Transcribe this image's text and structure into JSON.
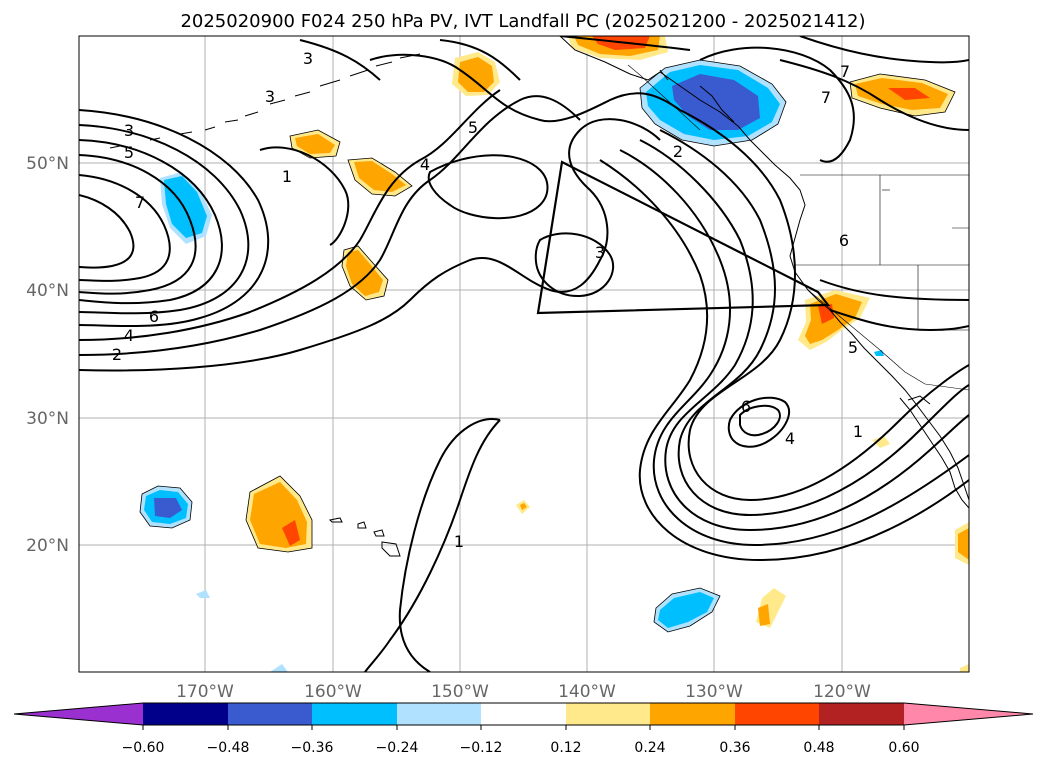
{
  "title": "2025020900 F024 250 hPa PV, IVT Landfall PC (2025021200 - 2025021412)",
  "map": {
    "lon_range": [
      -180,
      -110
    ],
    "lat_range": [
      10,
      60
    ],
    "lat_labels": [
      "20°N",
      "30°N",
      "40°N",
      "50°N"
    ],
    "lon_labels": [
      "170°W",
      "160°W",
      "150°W",
      "140°W",
      "130°W",
      "120°W"
    ],
    "contour_labels": [
      "3",
      "3",
      "5",
      "7",
      "6",
      "4",
      "2",
      "1",
      "3",
      "4",
      "5",
      "2",
      "3",
      "7",
      "7",
      "6",
      "5",
      "6",
      "4",
      "1",
      "1"
    ]
  },
  "colorbar": {
    "ticks": [
      "−0.60",
      "−0.48",
      "−0.36",
      "−0.24",
      "−0.12",
      "0.12",
      "0.24",
      "0.36",
      "0.48",
      "0.60"
    ],
    "colors": [
      "#9b30d0",
      "#00008b",
      "#3a5bd0",
      "#00bfff",
      "#b0e2ff",
      "#ffffff",
      "#ffe98a",
      "#ffa500",
      "#ff4500",
      "#b22222",
      "#ff88aa"
    ]
  }
}
